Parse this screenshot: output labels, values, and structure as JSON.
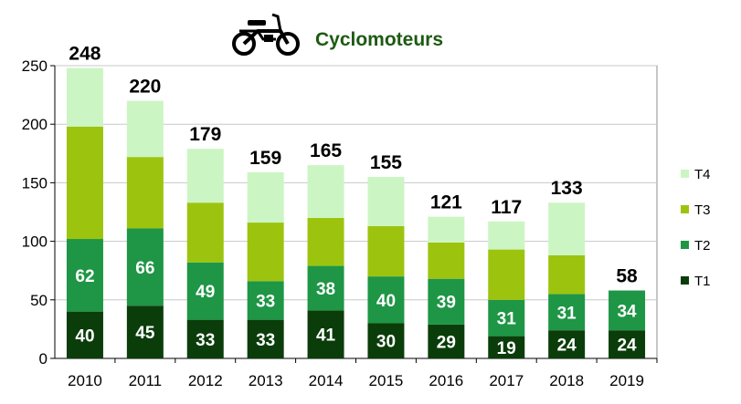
{
  "chart_data": {
    "type": "bar",
    "stacked": true,
    "title": "Cyclomoteurs",
    "title_icon": "moped-icon",
    "categories": [
      "2010",
      "2011",
      "2012",
      "2013",
      "2014",
      "2015",
      "2016",
      "2017",
      "2018",
      "2019"
    ],
    "series": [
      {
        "name": "T1",
        "color": "#0a3d0a",
        "values": [
          40,
          45,
          33,
          33,
          41,
          30,
          29,
          19,
          24,
          24
        ],
        "labels": [
          "40",
          "45",
          "33",
          "33",
          "41",
          "30",
          "29",
          "19",
          "24",
          "24"
        ]
      },
      {
        "name": "T2",
        "color": "#1e9645",
        "values": [
          62,
          66,
          49,
          33,
          38,
          40,
          39,
          31,
          31,
          34
        ],
        "labels": [
          "62",
          "66",
          "49",
          "33",
          "38",
          "40",
          "39",
          "31",
          "31",
          "34"
        ]
      },
      {
        "name": "T3",
        "color": "#9cc40e",
        "values": [
          96,
          61,
          51,
          50,
          41,
          43,
          31,
          43,
          33,
          0
        ]
      },
      {
        "name": "T4",
        "color": "#ccf5c4",
        "values": [
          50,
          48,
          46,
          43,
          45,
          42,
          22,
          24,
          45,
          0
        ]
      }
    ],
    "totals": [
      248,
      220,
      179,
      159,
      165,
      155,
      121,
      117,
      133,
      58
    ],
    "total_labels": [
      "248",
      "220",
      "179",
      "159",
      "165",
      "155",
      "121",
      "117",
      "133",
      "58"
    ],
    "ylim": [
      0,
      250
    ],
    "yticks": [
      0,
      50,
      100,
      150,
      200,
      250
    ],
    "ytick_labels": [
      "0",
      "50",
      "100",
      "150",
      "200",
      "250"
    ],
    "grid": true,
    "legend_position": "right",
    "legend": [
      "T4",
      "T3",
      "T2",
      "T1"
    ],
    "xlabel": "",
    "ylabel": ""
  }
}
